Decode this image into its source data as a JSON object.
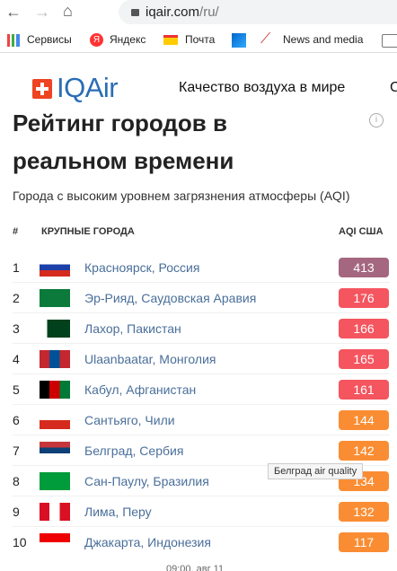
{
  "browser": {
    "host": "iqair.com",
    "path": "/ru/"
  },
  "bookmarks": [
    "Сервисы",
    "Яндекс",
    "Почта",
    "News and media"
  ],
  "header": {
    "logo": "IQAir",
    "nav": "Качество воздуха в мире",
    "nav_next": "С"
  },
  "ranking": {
    "title_line1": "Рейтинг городов в",
    "title_line2": "реальном времени",
    "subtitle": "Города с высоким уровнем загрязнения атмосферы (AQI)",
    "columns": [
      "#",
      "КРУПНЫЕ ГОРОДА",
      "AQI США"
    ],
    "rows": [
      {
        "rank": 1,
        "city": "Красноярск, Россия",
        "aqi": 413,
        "color": "#a4677f"
      },
      {
        "rank": 2,
        "city": "Эр-Рияд, Саудовская Аравия",
        "aqi": 176,
        "color": "#f4555f"
      },
      {
        "rank": 3,
        "city": "Лахор, Пакистан",
        "aqi": 166,
        "color": "#f4555f"
      },
      {
        "rank": 4,
        "city": "Ulaanbaatar, Монголия",
        "aqi": 165,
        "color": "#f4555f"
      },
      {
        "rank": 5,
        "city": "Кабул, Афганистан",
        "aqi": 161,
        "color": "#f4555f"
      },
      {
        "rank": 6,
        "city": "Сантьяго, Чили",
        "aqi": 144,
        "color": "#fa8d33"
      },
      {
        "rank": 7,
        "city": "Белград, Сербия",
        "aqi": 142,
        "color": "#fa8d33"
      },
      {
        "rank": 8,
        "city": "Сан-Паулу, Бразилия",
        "aqi": 134,
        "color": "#fa8d33"
      },
      {
        "rank": 9,
        "city": "Лима, Перу",
        "aqi": 132,
        "color": "#fa8d33"
      },
      {
        "rank": 10,
        "city": "Джакарта, Индонезия",
        "aqi": 117,
        "color": "#fa8d33"
      }
    ],
    "tooltip": "Белград air quality",
    "footer": "09:00, авг 11"
  }
}
